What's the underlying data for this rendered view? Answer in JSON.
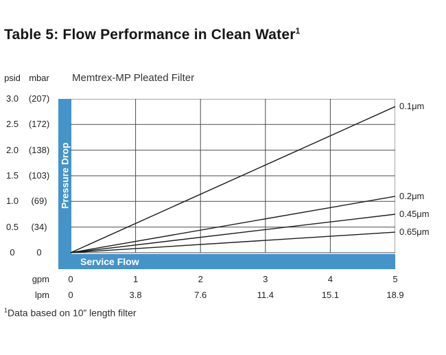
{
  "title": {
    "text": "Table 5: Flow Performance in Clean Water",
    "superscript": "1"
  },
  "footnote": {
    "superscript": "1",
    "text": "Data based on 10” length filter"
  },
  "colors": {
    "accent": "#4493c9",
    "line": "#1a1a1a",
    "grid": "#4a4a4a"
  },
  "chart_data": {
    "type": "line",
    "title": "Memtrex-MP Pleated Filter",
    "xlabel": "Service Flow",
    "ylabel": "Pressure Drop",
    "grid": true,
    "legend_position": "right-end-labels",
    "xlim": [
      0,
      5
    ],
    "ylim": [
      0,
      3.0
    ],
    "x_gridlines": [
      1,
      2,
      3,
      4,
      5
    ],
    "y_gridlines": [
      0,
      0.5,
      1.0,
      1.5,
      2.0,
      2.5,
      3.0
    ],
    "x_units": [
      {
        "name": "gpm",
        "ticks": [
          "0",
          "1",
          "2",
          "3",
          "4",
          "5"
        ]
      },
      {
        "name": "lpm",
        "ticks": [
          "0",
          "3.8",
          "7.6",
          "11.4",
          "15.1",
          "18.9"
        ]
      }
    ],
    "y_units": [
      {
        "name": "psid",
        "ticks": [
          "3.0",
          "2.5",
          "2.0",
          "1.5",
          "1.0",
          "0.5",
          "0"
        ]
      },
      {
        "name": "mbar",
        "ticks": [
          "(207)",
          "(172)",
          "(138)",
          "(103)",
          "(69)",
          "(34)",
          "0"
        ]
      }
    ],
    "series": [
      {
        "name": "0.1μm",
        "points": [
          [
            0,
            0
          ],
          [
            5,
            2.85
          ]
        ]
      },
      {
        "name": "0.2μm",
        "points": [
          [
            0,
            0
          ],
          [
            5,
            1.1
          ]
        ]
      },
      {
        "name": "0.45μm",
        "points": [
          [
            0,
            0
          ],
          [
            5,
            0.75
          ]
        ]
      },
      {
        "name": "0.65μm",
        "points": [
          [
            0,
            0
          ],
          [
            5,
            0.4
          ]
        ]
      }
    ]
  }
}
